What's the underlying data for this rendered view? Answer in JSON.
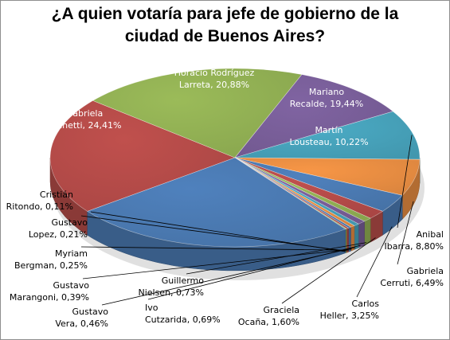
{
  "chart_data": {
    "type": "pie",
    "title_lines": [
      "¿A quien votaría para jefe de gobierno de la",
      "ciudad de Buenos Aires?"
    ],
    "slices": [
      {
        "line1": "Horacio Rodríguez",
        "line2": "Larreta, 20,88%",
        "value": 20.88,
        "color": "#c0504d"
      },
      {
        "line1": "Mariano",
        "line2": "Recalde, 19,44%",
        "value": 19.44,
        "color": "#9bbb59"
      },
      {
        "line1": "Martín",
        "line2": "Lousteau, 10,22%",
        "value": 10.22,
        "color": "#8064a2"
      },
      {
        "line1": "Anibal",
        "line2": "Ibarra, 8,80%",
        "value": 8.8,
        "color": "#4bacc6"
      },
      {
        "line1": "Gabriela",
        "line2": "Cerruti, 6,49%",
        "value": 6.49,
        "color": "#f79646"
      },
      {
        "line1": "Carlos",
        "line2": "Heller, 3,25%",
        "value": 3.25,
        "color": "#4f81bd"
      },
      {
        "line1": "Graciela",
        "line2": "Ocaña, 1,60%",
        "value": 1.6,
        "color": "#c0504d"
      },
      {
        "line1": "Guillermo",
        "line2": "Nielsen, 0,73%",
        "value": 0.73,
        "color": "#9bbb59"
      },
      {
        "line1": "Ivo",
        "line2": "Cutzarida, 0,69%",
        "value": 0.69,
        "color": "#8064a2"
      },
      {
        "line1": "Gustavo",
        "line2": "Vera, 0,46%",
        "value": 0.46,
        "color": "#4bacc6"
      },
      {
        "line1": "Gustavo",
        "line2": "Marangoni, 0,39%",
        "value": 0.39,
        "color": "#f79646"
      },
      {
        "line1": "Myriam",
        "line2": "Bergman, 0,25%",
        "value": 0.25,
        "color": "#4f81bd"
      },
      {
        "line1": "Gustavo",
        "line2": "Lopez, 0,21%",
        "value": 0.21,
        "color": "#c0504d"
      },
      {
        "line1": "Cristián",
        "line2": "Ritondo, 0,11%",
        "value": 0.11,
        "color": "#9bbb59"
      },
      {
        "line1": "Gabriela",
        "line2": "Michetti, 24,41%",
        "value": 24.41,
        "color": "#4f81bd"
      }
    ]
  }
}
